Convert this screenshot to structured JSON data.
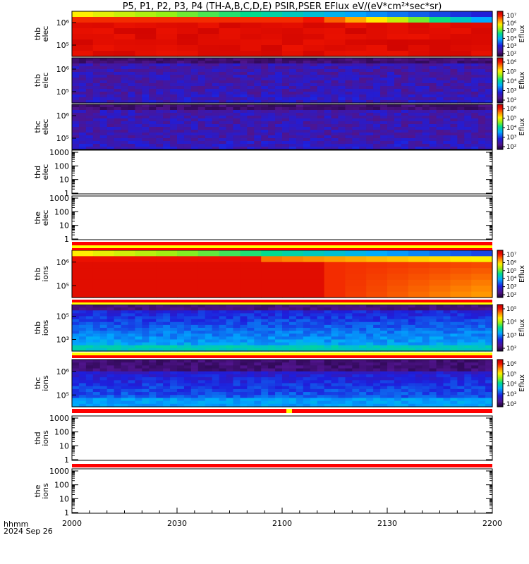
{
  "title": "P5, P1, P2, P3, P4 (TH-A,B,C,D,E) PSIR,PSER EFlux eV/(eV*cm²*sec*sr)",
  "chart_data": {
    "type": "heatmap",
    "x_axis": {
      "label_top": "hhmm",
      "label_bottom": "2024 Sep 26",
      "ticks": [
        "2000",
        "2030",
        "2100",
        "2130",
        "2200"
      ]
    },
    "colorbar_label": "Eflux",
    "panels": [
      {
        "kind": "spec",
        "label": [
          "thb",
          "elec"
        ],
        "yticks": [
          "10⁵",
          "10⁶"
        ],
        "cbar_ticks": [
          "10⁷",
          "10⁶",
          "10⁵",
          "10⁴",
          "10³",
          "10²"
        ],
        "profile": "hot"
      },
      {
        "kind": "spec",
        "label": [
          "thb",
          "elec"
        ],
        "yticks": [
          "10⁵",
          "10⁶"
        ],
        "cbar_ticks": [
          "10⁶",
          "10⁵",
          "10⁴",
          "10³",
          "10²"
        ],
        "profile": "noise"
      },
      {
        "kind": "spec",
        "label": [
          "thc",
          "elec"
        ],
        "yticks": [
          "10⁵",
          "10⁶"
        ],
        "cbar_ticks": [
          "10⁶",
          "10⁵",
          "10⁴",
          "10³",
          "10²"
        ],
        "profile": "noise"
      },
      {
        "kind": "empty",
        "label": [
          "thd",
          "elec"
        ],
        "yticks": [
          "1000",
          "100",
          "10",
          "1"
        ]
      },
      {
        "kind": "empty",
        "label": [
          "the",
          "elec"
        ],
        "yticks": [
          "1000",
          "100",
          "10",
          "1"
        ]
      },
      {
        "kind": "spec",
        "label": [
          "thb",
          "ions"
        ],
        "yticks": [
          "10⁵",
          "10⁶"
        ],
        "cbar_ticks": [
          "10⁷",
          "10⁶",
          "10⁵",
          "10⁴",
          "10³",
          "10²"
        ],
        "profile": "ionhot"
      },
      {
        "kind": "spec",
        "label": [
          "thb",
          "ions"
        ],
        "yticks": [
          "10³",
          "10⁵"
        ],
        "cbar_ticks": [
          "10⁵",
          "10⁴",
          "10³",
          "10²"
        ],
        "profile": "ionblue"
      },
      {
        "kind": "spec",
        "label": [
          "thc",
          "ions"
        ],
        "yticks": [
          "10⁵",
          "10⁶"
        ],
        "cbar_ticks": [
          "10⁶",
          "10⁵",
          "10⁴",
          "10³",
          "10²"
        ],
        "profile": "ionnoise"
      },
      {
        "kind": "empty",
        "label": [
          "thd",
          "ions"
        ],
        "yticks": [
          "1000",
          "100",
          "10",
          "1"
        ]
      },
      {
        "kind": "empty",
        "label": [
          "the",
          "ions"
        ],
        "yticks": [
          "1000",
          "100",
          "10",
          "1"
        ]
      }
    ]
  }
}
